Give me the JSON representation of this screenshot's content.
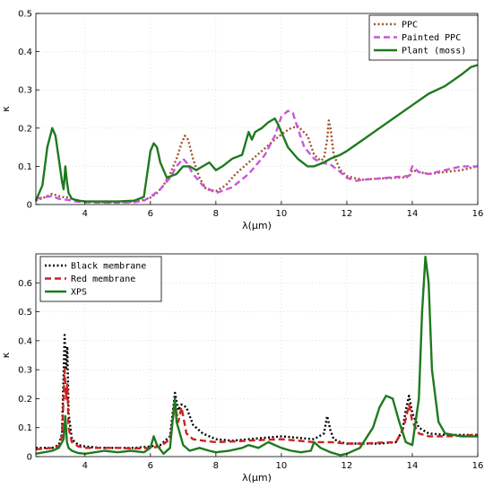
{
  "chart_data": [
    {
      "type": "line",
      "xlabel": "λ(μm)",
      "ylabel": "κ",
      "xlim": [
        2.5,
        16
      ],
      "ylim": [
        0,
        0.5
      ],
      "xticks": [
        4,
        6,
        8,
        10,
        12,
        14,
        16
      ],
      "xtick_labels": [
        "4",
        "6",
        "8",
        "10",
        "12",
        "14",
        "16"
      ],
      "yticks": [
        0,
        0.1,
        0.2,
        0.3,
        0.4,
        0.5
      ],
      "ytick_labels": [
        "0",
        "0.1",
        "0.2",
        "0.3",
        "0.4",
        "0.5"
      ],
      "grid": true,
      "legend_position": "top-right",
      "series": [
        {
          "name": "PPC",
          "color": "#a0522d",
          "dash": "dotted",
          "x": [
            2.5,
            2.8,
            3.0,
            3.2,
            3.4,
            3.5,
            3.7,
            4.0,
            4.5,
            5.0,
            5.5,
            5.8,
            6.0,
            6.2,
            6.4,
            6.6,
            6.8,
            6.95,
            7.05,
            7.15,
            7.3,
            7.5,
            7.7,
            8.0,
            8.3,
            8.6,
            9.0,
            9.4,
            9.8,
            10.1,
            10.3,
            10.5,
            10.8,
            11.0,
            11.2,
            11.3,
            11.4,
            11.45,
            11.5,
            11.6,
            11.8,
            12.0,
            12.2,
            12.5,
            13.0,
            13.5,
            13.9,
            14.0,
            14.2,
            14.5,
            15.0,
            15.5,
            16.0
          ],
          "y": [
            0.01,
            0.02,
            0.028,
            0.022,
            0.018,
            0.02,
            0.012,
            0.008,
            0.006,
            0.006,
            0.008,
            0.012,
            0.018,
            0.03,
            0.05,
            0.08,
            0.12,
            0.16,
            0.18,
            0.17,
            0.12,
            0.07,
            0.04,
            0.035,
            0.05,
            0.08,
            0.11,
            0.14,
            0.17,
            0.19,
            0.2,
            0.205,
            0.18,
            0.13,
            0.115,
            0.12,
            0.17,
            0.22,
            0.2,
            0.13,
            0.09,
            0.075,
            0.07,
            0.065,
            0.068,
            0.07,
            0.072,
            0.09,
            0.085,
            0.08,
            0.085,
            0.09,
            0.1
          ]
        },
        {
          "name": "Painted PPC",
          "color": "#cc55dd",
          "dash": "dashed",
          "x": [
            2.5,
            2.8,
            3.0,
            3.2,
            3.5,
            3.7,
            4.0,
            4.5,
            5.0,
            5.5,
            5.8,
            6.0,
            6.3,
            6.6,
            6.8,
            7.0,
            7.1,
            7.3,
            7.6,
            8.0,
            8.5,
            9.0,
            9.5,
            9.8,
            10.0,
            10.2,
            10.35,
            10.5,
            10.7,
            11.0,
            11.2,
            11.5,
            11.8,
            12.0,
            12.3,
            12.5,
            13.0,
            13.5,
            13.9,
            14.0,
            14.2,
            14.5,
            15.0,
            15.5,
            16.0
          ],
          "y": [
            0.015,
            0.02,
            0.022,
            0.015,
            0.012,
            0.008,
            0.006,
            0.005,
            0.005,
            0.006,
            0.01,
            0.02,
            0.04,
            0.07,
            0.1,
            0.12,
            0.11,
            0.08,
            0.05,
            0.03,
            0.045,
            0.08,
            0.13,
            0.18,
            0.23,
            0.245,
            0.24,
            0.2,
            0.15,
            0.12,
            0.11,
            0.105,
            0.085,
            0.07,
            0.062,
            0.065,
            0.068,
            0.072,
            0.075,
            0.1,
            0.085,
            0.08,
            0.09,
            0.1,
            0.1
          ]
        },
        {
          "name": "Plant (moss)",
          "color": "#1e7a1e",
          "dash": "solid",
          "x": [
            2.5,
            2.7,
            2.85,
            3.0,
            3.1,
            3.2,
            3.3,
            3.35,
            3.4,
            3.45,
            3.5,
            3.6,
            3.8,
            4.0,
            4.5,
            5.0,
            5.5,
            5.8,
            5.9,
            6.0,
            6.1,
            6.2,
            6.3,
            6.5,
            6.8,
            7.0,
            7.2,
            7.4,
            7.6,
            7.8,
            8.0,
            8.2,
            8.5,
            8.8,
            9.0,
            9.1,
            9.2,
            9.4,
            9.6,
            9.8,
            9.9,
            10.0,
            10.2,
            10.5,
            10.8,
            11.0,
            11.3,
            11.5,
            11.8,
            12.0,
            12.5,
            13.0,
            13.5,
            14.0,
            14.5,
            15.0,
            15.5,
            15.8,
            16.0
          ],
          "y": [
            0.01,
            0.05,
            0.15,
            0.2,
            0.18,
            0.12,
            0.06,
            0.04,
            0.1,
            0.06,
            0.03,
            0.015,
            0.01,
            0.008,
            0.008,
            0.008,
            0.01,
            0.02,
            0.08,
            0.14,
            0.16,
            0.15,
            0.11,
            0.07,
            0.08,
            0.1,
            0.1,
            0.09,
            0.1,
            0.11,
            0.09,
            0.1,
            0.12,
            0.13,
            0.19,
            0.17,
            0.19,
            0.2,
            0.215,
            0.225,
            0.21,
            0.19,
            0.15,
            0.12,
            0.1,
            0.1,
            0.11,
            0.12,
            0.13,
            0.14,
            0.17,
            0.2,
            0.23,
            0.26,
            0.29,
            0.31,
            0.34,
            0.36,
            0.365
          ]
        }
      ]
    },
    {
      "type": "line",
      "xlabel": "λ(μm)",
      "ylabel": "κ",
      "xlim": [
        2.5,
        16
      ],
      "ylim": [
        0,
        0.7
      ],
      "xticks": [
        4,
        6,
        8,
        10,
        12,
        14,
        16
      ],
      "xtick_labels": [
        "4",
        "6",
        "8",
        "10",
        "12",
        "14",
        "16"
      ],
      "yticks": [
        0,
        0.1,
        0.2,
        0.3,
        0.4,
        0.5,
        0.6
      ],
      "ytick_labels": [
        "0",
        "0.1",
        "0.2",
        "0.3",
        "0.4",
        "0.5",
        "0.6"
      ],
      "grid": true,
      "legend_position": "top-left",
      "series": [
        {
          "name": "Black membrane",
          "color": "#000000",
          "dash": "dotted",
          "x": [
            2.5,
            3.0,
            3.2,
            3.3,
            3.38,
            3.42,
            3.46,
            3.5,
            3.6,
            3.8,
            4.0,
            4.5,
            5.0,
            5.5,
            6.0,
            6.3,
            6.6,
            6.75,
            6.85,
            6.95,
            7.1,
            7.3,
            7.6,
            8.0,
            8.5,
            9.0,
            9.5,
            10.0,
            10.5,
            11.0,
            11.3,
            11.4,
            11.5,
            11.6,
            11.8,
            12.0,
            12.5,
            13.0,
            13.5,
            13.7,
            13.8,
            13.9,
            14.0,
            14.2,
            14.5,
            15.0,
            15.5,
            16.0
          ],
          "y": [
            0.03,
            0.03,
            0.04,
            0.08,
            0.42,
            0.3,
            0.38,
            0.15,
            0.06,
            0.04,
            0.035,
            0.03,
            0.03,
            0.03,
            0.035,
            0.04,
            0.07,
            0.22,
            0.16,
            0.18,
            0.17,
            0.11,
            0.08,
            0.06,
            0.055,
            0.06,
            0.065,
            0.07,
            0.065,
            0.06,
            0.08,
            0.14,
            0.09,
            0.06,
            0.05,
            0.045,
            0.045,
            0.045,
            0.05,
            0.09,
            0.16,
            0.21,
            0.15,
            0.1,
            0.08,
            0.075,
            0.075,
            0.075
          ]
        },
        {
          "name": "Red membrane",
          "color": "#cc2222",
          "dash": "dashed",
          "x": [
            2.5,
            3.0,
            3.2,
            3.3,
            3.38,
            3.42,
            3.46,
            3.5,
            3.6,
            3.8,
            4.0,
            4.5,
            5.0,
            5.5,
            6.0,
            6.3,
            6.6,
            6.75,
            6.85,
            6.95,
            7.1,
            7.3,
            7.6,
            8.0,
            8.5,
            9.0,
            9.5,
            10.0,
            10.5,
            11.0,
            11.5,
            12.0,
            12.5,
            13.0,
            13.5,
            13.7,
            13.8,
            13.9,
            14.0,
            14.2,
            14.5,
            15.0,
            15.5,
            16.0
          ],
          "y": [
            0.025,
            0.03,
            0.035,
            0.07,
            0.3,
            0.2,
            0.25,
            0.1,
            0.05,
            0.035,
            0.03,
            0.03,
            0.03,
            0.028,
            0.03,
            0.035,
            0.06,
            0.18,
            0.12,
            0.17,
            0.08,
            0.06,
            0.055,
            0.05,
            0.052,
            0.055,
            0.058,
            0.06,
            0.055,
            0.05,
            0.05,
            0.045,
            0.045,
            0.048,
            0.05,
            0.09,
            0.13,
            0.18,
            0.12,
            0.08,
            0.07,
            0.07,
            0.072,
            0.075
          ]
        },
        {
          "name": "XPS",
          "color": "#1e7a1e",
          "dash": "solid",
          "x": [
            2.5,
            3.0,
            3.2,
            3.35,
            3.4,
            3.45,
            3.5,
            3.6,
            3.8,
            4.0,
            4.3,
            4.6,
            5.0,
            5.4,
            5.8,
            6.0,
            6.1,
            6.2,
            6.4,
            6.6,
            6.7,
            6.75,
            6.8,
            6.9,
            7.0,
            7.2,
            7.5,
            7.8,
            8.0,
            8.4,
            8.8,
            9.0,
            9.3,
            9.6,
            9.8,
            10.0,
            10.3,
            10.6,
            10.9,
            11.0,
            11.2,
            11.5,
            11.8,
            12.0,
            12.4,
            12.8,
            13.0,
            13.2,
            13.4,
            13.6,
            13.8,
            14.0,
            14.2,
            14.3,
            14.4,
            14.5,
            14.6,
            14.8,
            15.0,
            15.5,
            16.0
          ],
          "y": [
            0.01,
            0.02,
            0.03,
            0.06,
            0.14,
            0.05,
            0.03,
            0.02,
            0.012,
            0.01,
            0.015,
            0.02,
            0.015,
            0.02,
            0.015,
            0.03,
            0.07,
            0.04,
            0.01,
            0.03,
            0.15,
            0.2,
            0.12,
            0.08,
            0.04,
            0.02,
            0.03,
            0.02,
            0.015,
            0.02,
            0.03,
            0.04,
            0.03,
            0.05,
            0.04,
            0.03,
            0.02,
            0.015,
            0.02,
            0.05,
            0.03,
            0.015,
            0.005,
            0.01,
            0.03,
            0.1,
            0.17,
            0.21,
            0.2,
            0.12,
            0.05,
            0.04,
            0.2,
            0.5,
            0.69,
            0.6,
            0.3,
            0.12,
            0.08,
            0.07,
            0.07
          ]
        }
      ]
    }
  ]
}
